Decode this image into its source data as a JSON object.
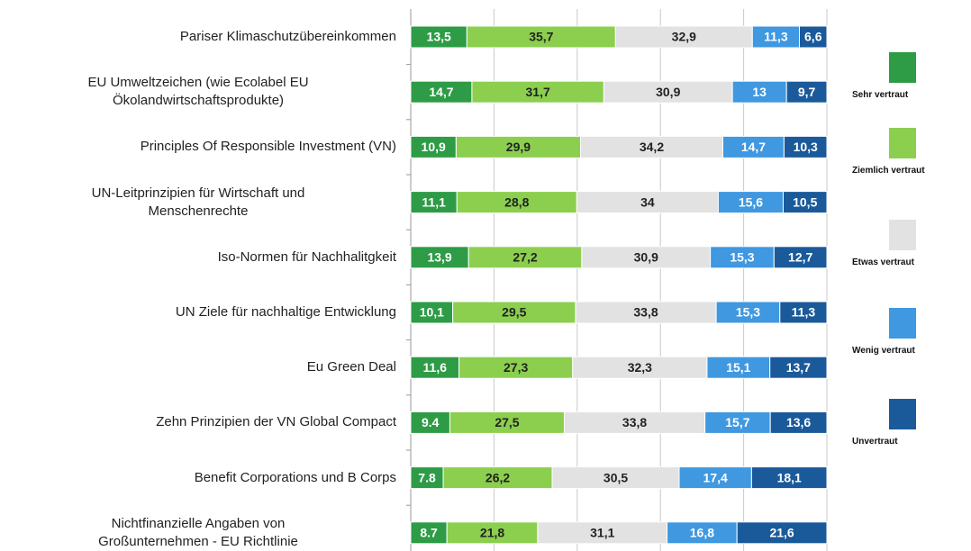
{
  "chart_data": {
    "type": "stacked-bar",
    "categories": [
      "Pariser Klimaschutzübereinkommen",
      "EU Umweltzeichen (wie Ecolabel EU\nÖkolandwirtschaftsprodukte)",
      "Principles Of Responsible Investment (VN)",
      "UN-Leitprinzipien für Wirtschaft und\nMenschenrechte",
      "Iso-Normen für Nachhalitgkeit",
      "UN Ziele für nachhaltige Entwicklung",
      "Eu Green Deal",
      "Zehn Prinzipien der VN Global Compact",
      "Benefit Corporations und B Corps",
      "Nichtfinanzielle Angaben von\nGroßunternehmen - EU Richtlinie"
    ],
    "series": [
      {
        "name": "Sehr vertraut",
        "color": "#2e9b46",
        "values": [
          13.5,
          14.7,
          10.9,
          11.1,
          13.9,
          10.1,
          11.6,
          9.4,
          7.8,
          8.7
        ],
        "value_labels": [
          "13,5",
          "14,7",
          "10,9",
          "11,1",
          "13,9",
          "10,1",
          "11,6",
          "9.4",
          "7.8",
          "8.7"
        ]
      },
      {
        "name": "Ziemlich vertraut",
        "color": "#8ccf4f",
        "values": [
          35.7,
          31.7,
          29.9,
          28.8,
          27.2,
          29.5,
          27.3,
          27.5,
          26.2,
          21.8
        ],
        "value_labels": [
          "35,7",
          "31,7",
          "29,9",
          "28,8",
          "27,2",
          "29,5",
          "27,3",
          "27,5",
          "26,2",
          "21,8"
        ]
      },
      {
        "name": "Etwas vertraut",
        "color": "#e2e2e2",
        "values": [
          32.9,
          30.9,
          34.2,
          34,
          30.9,
          33.8,
          32.3,
          33.8,
          30.5,
          31.1
        ],
        "value_labels": [
          "32,9",
          "30,9",
          "34,2",
          "34",
          "30,9",
          "33,8",
          "32,3",
          "33,8",
          "30,5",
          "31,1"
        ]
      },
      {
        "name": "Wenig vertraut",
        "color": "#3f98e0",
        "values": [
          11.3,
          13,
          14.7,
          15.6,
          15.3,
          15.3,
          15.1,
          15.7,
          17.4,
          16.8
        ],
        "value_labels": [
          "11,3",
          "13",
          "14,7",
          "15,6",
          "15,3",
          "15,3",
          "15,1",
          "15,7",
          "17,4",
          "16,8"
        ]
      },
      {
        "name": "Unvertraut",
        "color": "#1b5a9a",
        "values": [
          6.6,
          9.7,
          10.3,
          10.5,
          12.7,
          11.3,
          13.7,
          13.6,
          18.1,
          21.6
        ],
        "value_labels": [
          "6,6",
          "9,7",
          "10,3",
          "10,5",
          "12,7",
          "11,3",
          "13,7",
          "13,6",
          "18,1",
          "21,6"
        ]
      }
    ],
    "xlim": [
      0,
      100
    ],
    "xticks": [
      0,
      20,
      40,
      60,
      80,
      100
    ],
    "grid": true
  }
}
